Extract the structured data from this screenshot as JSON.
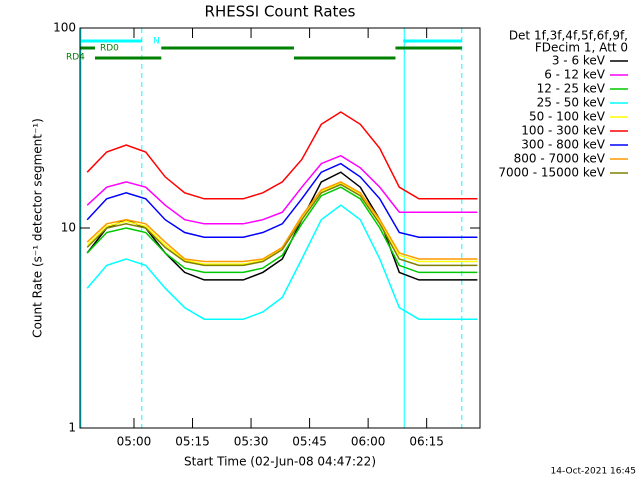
{
  "chart_data": {
    "type": "line",
    "title": "RHESSI Count Rates",
    "xlabel": "Start Time (02-Jun-08 04:47:22)",
    "ylabel": "Count Rate (s⁻¹ detector segment⁻¹)",
    "legend_title": [
      "Det 1f,3f,4f,5f,6f,9f,",
      "FDecim 1, Att 0"
    ],
    "footer": "14-Oct-2021 16:45",
    "log_y": true,
    "legend": "outside-right",
    "xlim": [
      "04:46:10",
      "06:28:40"
    ],
    "xticks": [
      "05:00",
      "05:15",
      "05:30",
      "05:45",
      "06:00",
      "06:15"
    ],
    "ylim": [
      1,
      100
    ],
    "yticks": [
      1,
      10,
      100
    ],
    "x": [
      "04:48",
      "04:53",
      "04:58",
      "05:03",
      "05:08",
      "05:13",
      "05:18",
      "05:23",
      "05:28",
      "05:33",
      "05:38",
      "05:43",
      "05:48",
      "05:53",
      "05:58",
      "06:03",
      "06:08",
      "06:13",
      "06:18",
      "06:23",
      "06:28"
    ],
    "series": [
      {
        "name": "3 - 6 keV",
        "color": "#000000",
        "values": [
          7.5,
          10,
          11,
          10,
          7.5,
          6,
          5.5,
          5.5,
          5.5,
          6,
          7,
          11,
          17,
          19,
          16,
          11,
          6,
          5.5,
          5.5,
          5.5,
          5.5
        ]
      },
      {
        "name": "6 - 12 keV",
        "color": "#ff00ff",
        "values": [
          13,
          16,
          17,
          16,
          13,
          11,
          10.5,
          10.5,
          10.5,
          11,
          12,
          16,
          21,
          23,
          20,
          16,
          12,
          12,
          12,
          12,
          12
        ]
      },
      {
        "name": "12 - 25 keV",
        "color": "#00c800",
        "values": [
          7.5,
          9.5,
          10,
          9.5,
          7.5,
          6.3,
          6,
          6,
          6,
          6.3,
          7.3,
          10.5,
          14.5,
          16,
          14,
          10,
          6.5,
          6,
          6,
          6,
          6
        ]
      },
      {
        "name": "25 - 50 keV",
        "color": "#00ffff",
        "values": [
          5,
          6.5,
          7,
          6.5,
          5,
          4,
          3.5,
          3.5,
          3.5,
          3.8,
          4.5,
          7,
          11,
          13,
          11,
          7,
          4,
          3.5,
          3.5,
          3.5,
          3.5
        ]
      },
      {
        "name": "50 - 100 keV",
        "color": "#ffff00",
        "values": [
          8.2,
          10.2,
          10.8,
          10.2,
          8.2,
          6.9,
          6.6,
          6.6,
          6.6,
          6.9,
          7.9,
          11.2,
          15.2,
          16.8,
          14.8,
          10.8,
          7.3,
          6.8,
          6.8,
          6.8,
          6.8
        ]
      },
      {
        "name": "100 - 300 keV",
        "color": "#ff0000",
        "values": [
          19,
          24,
          26,
          24,
          18,
          15,
          14,
          14,
          14,
          15,
          17,
          22,
          33,
          38,
          33,
          25,
          16,
          14,
          14,
          14,
          14
        ]
      },
      {
        "name": "300 - 800 keV",
        "color": "#0000ff",
        "values": [
          11,
          14,
          15,
          14,
          11,
          9.5,
          9,
          9,
          9,
          9.5,
          10.5,
          14,
          19,
          21,
          18,
          14,
          9.5,
          9,
          9,
          9,
          9
        ]
      },
      {
        "name": "800 - 7000 keV",
        "color": "#ff9900",
        "values": [
          8.5,
          10.5,
          11,
          10.5,
          8.5,
          7,
          6.8,
          6.8,
          6.8,
          7,
          8,
          11.5,
          15.5,
          17,
          15,
          11,
          7.5,
          7,
          7,
          7,
          7
        ]
      },
      {
        "name": "7000 - 15000 keV",
        "color": "#808000",
        "values": [
          8,
          10,
          10.5,
          10,
          8,
          6.8,
          6.5,
          6.5,
          6.5,
          6.8,
          7.8,
          11,
          15,
          16.5,
          14.5,
          10.5,
          7,
          6.5,
          6.5,
          6.5,
          6.5
        ]
      }
    ],
    "flags": [
      {
        "label": "N",
        "color": "#00ffff",
        "intervals": [
          [
            "04:46:10",
            "05:02"
          ],
          [
            "06:09",
            "06:24"
          ]
        ]
      },
      {
        "label": "RD0",
        "color": "#008000",
        "intervals": [
          [
            "04:46:10",
            "04:50"
          ],
          [
            "05:07",
            "05:41"
          ],
          [
            "06:07",
            "06:24"
          ]
        ]
      },
      {
        "label": "RD4",
        "color": "#008000",
        "intervals": [
          [
            "04:50",
            "05:07"
          ],
          [
            "05:41",
            "06:07"
          ]
        ]
      }
    ]
  }
}
